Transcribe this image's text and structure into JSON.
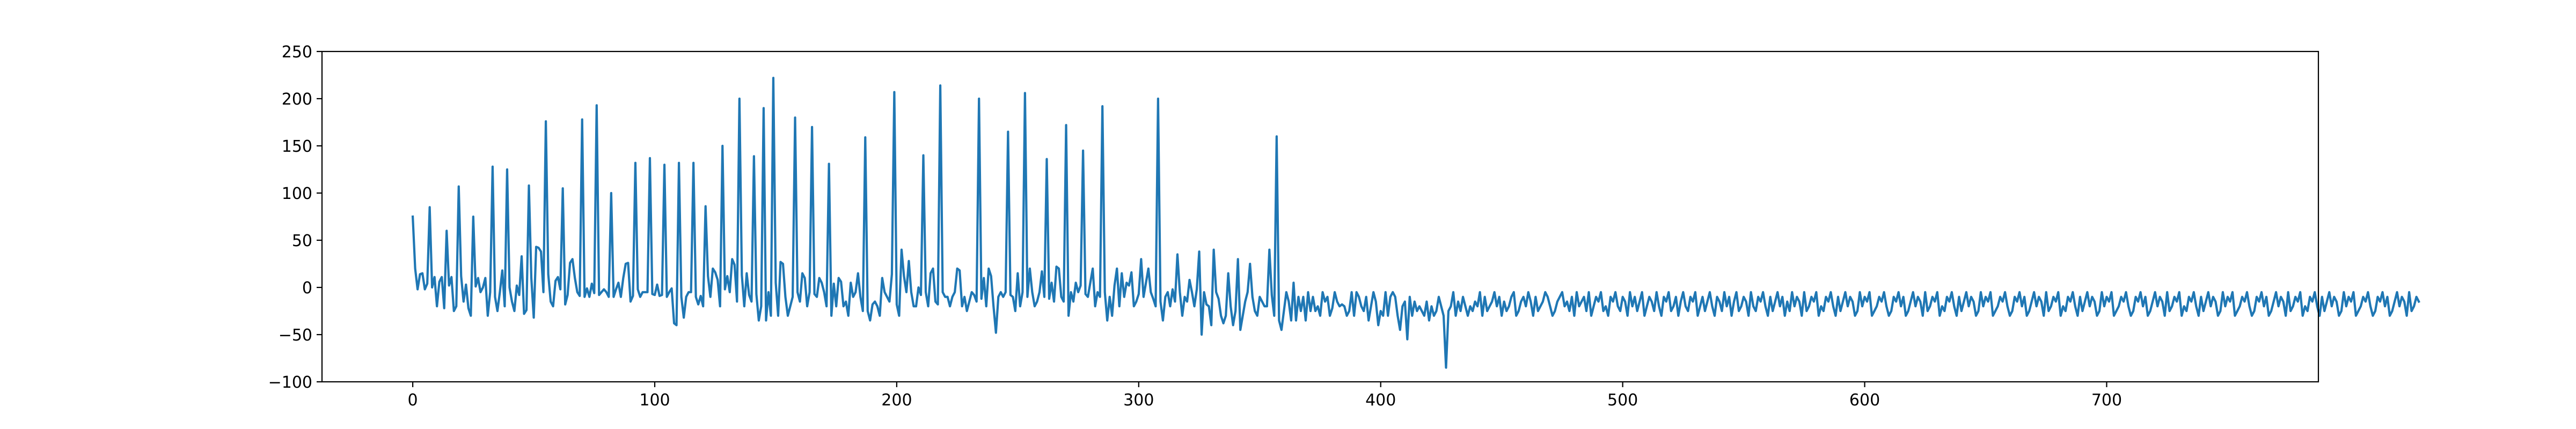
{
  "chart_data": {
    "type": "line",
    "title": "",
    "xlabel": "",
    "ylabel": "",
    "xlim": [
      -37.5,
      787.5
    ],
    "ylim": [
      -100,
      250
    ],
    "grid": false,
    "legend": "none",
    "line_color": "#1f77b4",
    "x_ticks": [
      0,
      100,
      200,
      300,
      400,
      500,
      600,
      700
    ],
    "x_tick_labels": [
      "0",
      "100",
      "200",
      "300",
      "400",
      "500",
      "600",
      "700"
    ],
    "y_ticks": [
      -100,
      -50,
      0,
      50,
      100,
      150,
      200,
      250
    ],
    "y_tick_labels": [
      "−100",
      "−50",
      "0",
      "50",
      "100",
      "150",
      "200",
      "250"
    ],
    "series": [
      {
        "x_start": 0,
        "x_step": 1,
        "values": [
          75,
          20,
          -2,
          14,
          15,
          -2,
          4,
          85,
          0,
          11,
          -20,
          6,
          11,
          -22,
          60,
          2,
          11,
          -25,
          -20,
          107,
          12,
          -15,
          3,
          -22,
          -30,
          75,
          1,
          10,
          -5,
          0,
          10,
          -30,
          -5,
          128,
          -10,
          -25,
          -5,
          18,
          -20,
          125,
          0,
          -15,
          -25,
          2,
          -8,
          33,
          -28,
          -24,
          108,
          10,
          -32,
          43,
          42,
          38,
          -5,
          176,
          14,
          -15,
          -20,
          7,
          11,
          -2,
          105,
          -18,
          -8,
          26,
          30,
          10,
          -5,
          -9,
          178,
          -10,
          -1,
          -10,
          4,
          -6,
          193,
          -8,
          -5,
          -2,
          -5,
          -10,
          100,
          -10,
          -2,
          5,
          -10,
          10,
          25,
          26,
          -15,
          -9,
          132,
          -2,
          -10,
          -5,
          -5,
          -5,
          137,
          -7,
          -8,
          3,
          -9,
          -8,
          130,
          -10,
          -5,
          -1,
          -38,
          -40,
          132,
          -10,
          -32,
          -10,
          -5,
          -5,
          132,
          -10,
          -18,
          -9,
          -20,
          86,
          12,
          -10,
          20,
          16,
          8,
          -20,
          150,
          -2,
          12,
          -5,
          30,
          24,
          -15,
          200,
          13,
          -20,
          15,
          -8,
          -15,
          139,
          -7,
          -35,
          -20,
          190,
          -35,
          -5,
          -30,
          222,
          5,
          -30,
          27,
          25,
          -10,
          -30,
          -20,
          -10,
          180,
          -5,
          -15,
          15,
          10,
          -20,
          -5,
          170,
          -7,
          -10,
          10,
          5,
          -5,
          -20,
          131,
          -30,
          4,
          -20,
          10,
          6,
          -20,
          -15,
          -30,
          5,
          -10,
          -5,
          15,
          -10,
          -25,
          159,
          -25,
          -35,
          -18,
          -15,
          -20,
          -30,
          10,
          -5,
          -10,
          -15,
          14,
          207,
          -18,
          -30,
          40,
          12,
          -5,
          28,
          -5,
          -20,
          -20,
          0,
          -8,
          140,
          -5,
          -20,
          15,
          20,
          -15,
          -18,
          214,
          -5,
          -10,
          -10,
          -20,
          -10,
          -5,
          20,
          18,
          -20,
          -10,
          -25,
          -15,
          -5,
          -8,
          -15,
          200,
          -12,
          10,
          -20,
          20,
          12,
          -20,
          -48,
          -10,
          -5,
          -10,
          -5,
          165,
          -8,
          -10,
          -25,
          15,
          -20,
          -5,
          206,
          -10,
          20,
          -5,
          -20,
          -15,
          -5,
          17,
          -10,
          136,
          -12,
          5,
          -15,
          22,
          20,
          -10,
          -15,
          172,
          -30,
          -5,
          -15,
          5,
          -5,
          2,
          145,
          -7,
          -10,
          5,
          20,
          -20,
          -5,
          -10,
          192,
          -5,
          -35,
          -10,
          -30,
          2,
          20,
          -20,
          15,
          -10,
          5,
          2,
          16,
          -20,
          -15,
          -7,
          30,
          -10,
          5,
          20,
          -5,
          -12,
          -20,
          200,
          -15,
          -35,
          -10,
          -5,
          -20,
          -2,
          -15,
          35,
          -5,
          -30,
          -10,
          -15,
          8,
          -5,
          -20,
          -2,
          38,
          -50,
          -5,
          -18,
          -20,
          -40,
          40,
          -5,
          -12,
          -30,
          -38,
          -30,
          15,
          -20,
          -40,
          -25,
          30,
          -45,
          -30,
          -15,
          -5,
          25,
          -10,
          -25,
          -30,
          -10,
          -15,
          -20,
          -20,
          40,
          -8,
          -30,
          160,
          -35,
          -45,
          -25,
          -5,
          -15,
          -35,
          5,
          -35,
          -10,
          -25,
          -10,
          -35,
          -5,
          -25,
          -10,
          -25,
          -20,
          -30,
          -5,
          -15,
          -10,
          -30,
          -22,
          -5,
          -15,
          -20,
          -18,
          -20,
          -30,
          -25,
          -5,
          -30,
          -5,
          -10,
          -20,
          -25,
          -10,
          -35,
          -20,
          -5,
          -15,
          -40,
          -25,
          -30,
          -5,
          -30,
          -10,
          -5,
          -10,
          -30,
          -45,
          -20,
          -15,
          -55,
          -10,
          -30,
          -15,
          -25,
          -20,
          -25,
          -30,
          -15,
          -35,
          -20,
          -30,
          -25,
          -10,
          -20,
          -30,
          -85,
          -25,
          -20,
          -5,
          -30,
          -15,
          -25,
          -10,
          -20,
          -30,
          -20,
          -25,
          -15,
          -20,
          -5,
          -30,
          -10,
          -25,
          -20,
          -15,
          -5,
          -20,
          -10,
          -30,
          -15,
          -25,
          -20,
          -10,
          -5,
          -30,
          -25,
          -15,
          -10,
          -20,
          -5,
          -15,
          -30,
          -10,
          -25,
          -20,
          -15,
          -5,
          -10,
          -20,
          -30,
          -25,
          -15,
          -10,
          -5,
          -20,
          -15,
          -25,
          -10,
          -30,
          -5,
          -20,
          -15,
          -10,
          -25,
          -5,
          -30,
          -20,
          -10,
          -15,
          -5,
          -25,
          -20,
          -30,
          -10,
          -15,
          -5,
          -20,
          -25,
          -10,
          -15,
          -30,
          -5,
          -20,
          -10,
          -25,
          -15,
          -5,
          -30,
          -20,
          -10,
          -15,
          -25,
          -5,
          -20,
          -30,
          -10,
          -15,
          -5,
          -25,
          -20,
          -10,
          -30,
          -15,
          -5,
          -20,
          -25,
          -10,
          -15,
          -5,
          -30,
          -20,
          -10,
          -25,
          -15,
          -5,
          -20,
          -30,
          -10,
          -15,
          -25,
          -5,
          -20,
          -10,
          -30,
          -15,
          -5,
          -25,
          -20,
          -10,
          -15,
          -30,
          -5,
          -20,
          -25,
          -10,
          -15,
          -5,
          -20,
          -30,
          -10,
          -25,
          -15,
          -5,
          -20,
          -10,
          -30,
          -15,
          -25,
          -5,
          -20,
          -10,
          -15,
          -30,
          -5,
          -25,
          -20,
          -10,
          -15,
          -5,
          -30,
          -20,
          -25,
          -10,
          -15,
          -5,
          -20,
          -30,
          -10,
          -25,
          -15,
          -5,
          -20,
          -10,
          -15,
          -30,
          -25,
          -5,
          -20,
          -10,
          -15,
          -5,
          -30,
          -25,
          -20,
          -10,
          -15,
          -5,
          -20,
          -30,
          -25,
          -10,
          -15,
          -5,
          -20,
          -10,
          -30,
          -25,
          -15,
          -5,
          -20,
          -10,
          -15,
          -30,
          -5,
          -25,
          -20,
          -10,
          -15,
          -5,
          -30,
          -20,
          -25,
          -10,
          -15,
          -5,
          -20,
          -30,
          -10,
          -25,
          -15,
          -5,
          -20,
          -10,
          -15,
          -30,
          -25,
          -5,
          -20,
          -10,
          -15,
          -5,
          -30,
          -25,
          -20,
          -10,
          -15,
          -5,
          -20,
          -30,
          -25,
          -10,
          -15,
          -5,
          -20,
          -10,
          -30,
          -25,
          -15,
          -5,
          -20,
          -10,
          -15,
          -30,
          -5,
          -25,
          -20,
          -10,
          -15,
          -5,
          -30,
          -20,
          -25,
          -10,
          -15,
          -5,
          -20,
          -30,
          -10,
          -25,
          -15,
          -5,
          -20,
          -10,
          -15,
          -30,
          -25,
          -5,
          -20,
          -10,
          -15,
          -5,
          -30,
          -25,
          -20,
          -10,
          -15,
          -5,
          -20,
          -30,
          -25,
          -10,
          -15,
          -5,
          -20,
          -10,
          -30,
          -25,
          -15,
          -5,
          -20,
          -10,
          -15,
          -30,
          -5,
          -25,
          -20,
          -10,
          -15,
          -5,
          -30,
          -20,
          -25,
          -10,
          -15,
          -5,
          -20,
          -30,
          -10,
          -25,
          -15,
          -5,
          -20,
          -10,
          -15,
          -30,
          -25,
          -5,
          -20,
          -10,
          -15,
          -5,
          -30,
          -25,
          -20,
          -10,
          -15,
          -5,
          -20,
          -30,
          -25,
          -10,
          -15,
          -5,
          -20,
          -10,
          -30,
          -25,
          -15,
          -5,
          -20,
          -10,
          -15,
          -30,
          -5,
          -25,
          -20,
          -10,
          -15,
          -5,
          -30,
          -20,
          -25,
          -10,
          -15,
          -5,
          -20,
          -30,
          -10,
          -25,
          -15,
          -5,
          -20,
          -10,
          -15,
          -30,
          -25,
          -5,
          -20,
          -10,
          -15,
          -5,
          -30,
          -25,
          -20,
          -10,
          -15,
          -5,
          -20,
          -30,
          -25,
          -10,
          -15,
          -5,
          -20,
          -10,
          -30,
          -25,
          -15,
          -5,
          -20,
          -10,
          -15,
          -30,
          -5,
          -25,
          -20,
          -10,
          -15
        ]
      }
    ]
  }
}
